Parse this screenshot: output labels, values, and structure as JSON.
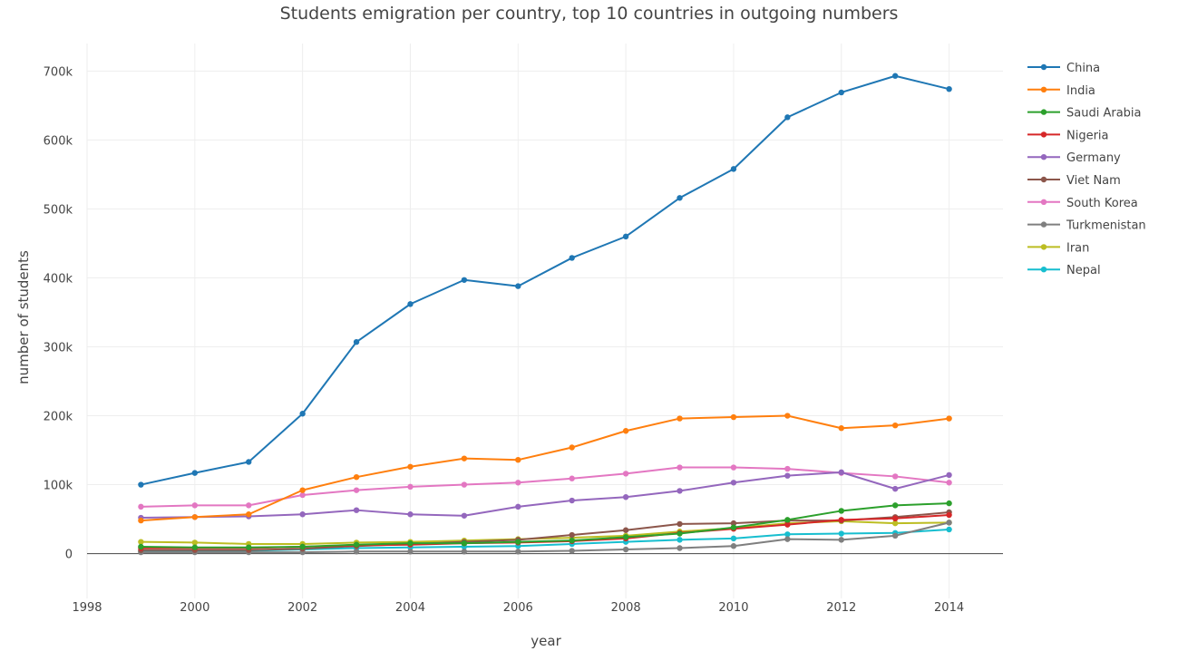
{
  "chart_data": {
    "type": "line",
    "title": "Students emigration per country, top 10 countries in outgoing numbers",
    "xlabel": "year",
    "ylabel": "number of students",
    "xlim": [
      1998,
      2015
    ],
    "ylim": [
      -65000,
      740000
    ],
    "x_ticks": [
      1998,
      2000,
      2002,
      2004,
      2006,
      2008,
      2010,
      2012,
      2014
    ],
    "x_tick_labels": [
      "1998",
      "2000",
      "2002",
      "2004",
      "2006",
      "2008",
      "2010",
      "2012",
      "2014"
    ],
    "y_ticks": [
      0,
      100000,
      200000,
      300000,
      400000,
      500000,
      600000,
      700000
    ],
    "y_tick_labels": [
      "0",
      "100k",
      "200k",
      "300k",
      "400k",
      "500k",
      "600k",
      "700k"
    ],
    "grid": true,
    "legend_position": "right",
    "x": [
      1999,
      2000,
      2001,
      2002,
      2003,
      2004,
      2005,
      2006,
      2007,
      2008,
      2009,
      2010,
      2011,
      2012,
      2013,
      2014
    ],
    "series": [
      {
        "name": "China",
        "color": "#1f77b4",
        "values": [
          100000,
          117000,
          133000,
          203000,
          307000,
          362000,
          397000,
          388000,
          429000,
          460000,
          516000,
          558000,
          633000,
          669000,
          693000,
          674000
        ]
      },
      {
        "name": "India",
        "color": "#ff7f0e",
        "values": [
          48000,
          53000,
          57000,
          92000,
          111000,
          126000,
          138000,
          136000,
          154000,
          178000,
          196000,
          198000,
          200000,
          182000,
          186000,
          196000
        ]
      },
      {
        "name": "Saudi Arabia",
        "color": "#2ca02c",
        "values": [
          10000,
          9000,
          9000,
          10000,
          13000,
          15000,
          15000,
          17000,
          19000,
          24000,
          29000,
          38000,
          49000,
          62000,
          70000,
          73000
        ]
      },
      {
        "name": "Nigeria",
        "color": "#d62728",
        "values": [
          8000,
          8000,
          8000,
          10000,
          12000,
          13000,
          15000,
          16000,
          18000,
          22000,
          30000,
          36000,
          42000,
          49000,
          51000,
          56000
        ]
      },
      {
        "name": "Germany",
        "color": "#9467bd",
        "values": [
          52000,
          53000,
          54000,
          57000,
          63000,
          57000,
          55000,
          68000,
          77000,
          82000,
          91000,
          103000,
          113000,
          118000,
          94000,
          114000
        ]
      },
      {
        "name": "Viet Nam",
        "color": "#8c564b",
        "values": [
          5000,
          5000,
          5000,
          7000,
          11000,
          14000,
          17000,
          20000,
          27000,
          34000,
          43000,
          44000,
          48000,
          48000,
          53000,
          60000
        ]
      },
      {
        "name": "South Korea",
        "color": "#e377c2",
        "values": [
          68000,
          70000,
          70000,
          85000,
          92000,
          97000,
          100000,
          103000,
          109000,
          116000,
          125000,
          125000,
          123000,
          117000,
          112000,
          103000
        ]
      },
      {
        "name": "Turkmenistan",
        "color": "#7f7f7f",
        "values": [
          2000,
          2000,
          2000,
          2000,
          3000,
          3000,
          3000,
          3000,
          4000,
          6000,
          8000,
          11000,
          21000,
          20000,
          26000,
          45000
        ]
      },
      {
        "name": "Iran",
        "color": "#bcbd22",
        "values": [
          17000,
          16000,
          14000,
          14000,
          16000,
          17000,
          19000,
          21000,
          23000,
          26000,
          32000,
          37000,
          44000,
          47000,
          44000,
          45000
        ]
      },
      {
        "name": "Nepal",
        "color": "#17becf",
        "values": [
          3000,
          4000,
          4000,
          6000,
          8000,
          9000,
          10000,
          11000,
          14000,
          17000,
          20000,
          22000,
          28000,
          29000,
          30000,
          35000
        ]
      }
    ]
  }
}
